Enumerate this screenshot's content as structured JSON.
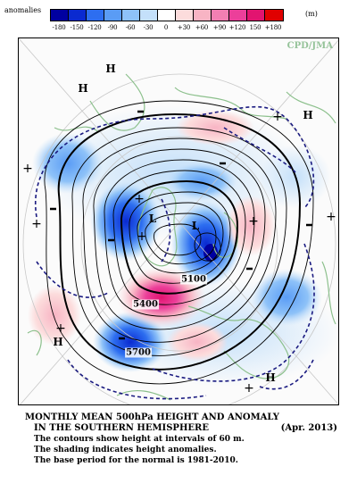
{
  "legend": {
    "title": "anomalies",
    "units": "(m)",
    "ticks": [
      "-180",
      "-150",
      "-120",
      "-90",
      "-60",
      "-30",
      "0",
      "+30",
      "+60",
      "+90",
      "+120",
      "150",
      "+180"
    ],
    "colors": [
      "#0000a0",
      "#0a2ad0",
      "#2d6ef0",
      "#5a9cf5",
      "#8ec2f8",
      "#c4e0fa",
      "#ffffff",
      "#fcdcdc",
      "#f8b4c4",
      "#f27fb2",
      "#ec3f9a",
      "#e21470",
      "#e00000"
    ]
  },
  "map": {
    "credit": "CPD/JMA",
    "pressure_labels": {
      "h_top_center": "H",
      "h_top_left": "H",
      "h_top_right": "H",
      "h_bottom_left": "H",
      "h_bottom_right": "H",
      "l_center_left": "L",
      "l_center": "L"
    },
    "contour_labels": {
      "c5100": "5100",
      "c5400": "5400",
      "c5700": "5700"
    }
  },
  "caption": {
    "line1": "MONTHLY MEAN 500hPa HEIGHT AND ANOMALY",
    "line2": "IN THE SOUTHERN HEMISPHERE",
    "date": "(Apr. 2013)",
    "line3": "The contours show height at intervals of 60 m.",
    "line4": "The shading indicates height anomalies.",
    "line5": "The base period for the normal is 1981-2010."
  }
}
